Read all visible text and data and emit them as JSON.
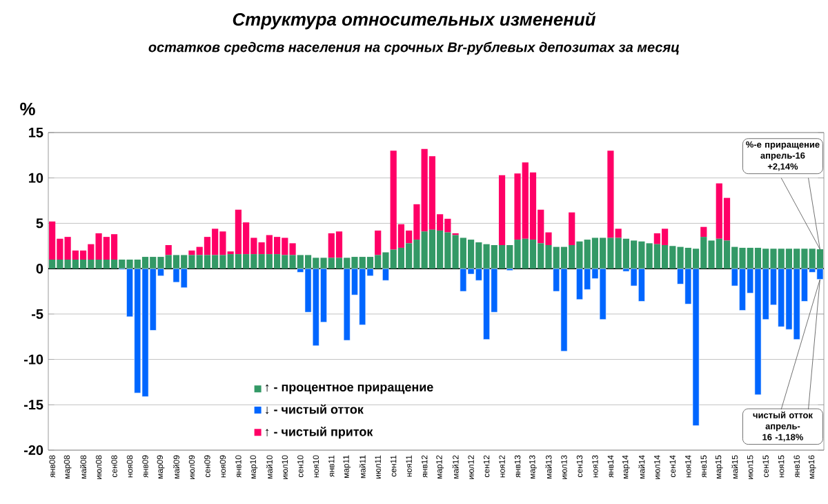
{
  "chart_data": {
    "type": "bar",
    "stacked": true,
    "title": "Структура относительных изменений",
    "subtitle": "остатков средств населения на срочных Br-рублевых депозитах за месяц",
    "ylabel": "%",
    "categories": [
      "янв08",
      null,
      "мар08",
      null,
      "май08",
      null,
      "июл08",
      null,
      "сен08",
      null,
      "ноя08",
      null,
      "янв09",
      null,
      "мар09",
      null,
      "май09",
      null,
      "июл09",
      null,
      "сен09",
      null,
      "ноя09",
      null,
      "янв10",
      null,
      "мар10",
      null,
      "май10",
      null,
      "июл10",
      null,
      "сен10",
      null,
      "ноя10",
      null,
      "янв11",
      null,
      "мар11",
      null,
      "май11",
      null,
      "июл11",
      null,
      "сен11",
      null,
      "ноя11",
      null,
      "янв12",
      null,
      "мар12",
      null,
      "май12",
      null,
      "июл12",
      null,
      "сен12",
      null,
      "ноя12",
      null,
      "янв13",
      null,
      "мар13",
      null,
      "май13",
      null,
      "июл13",
      null,
      "сен13",
      null,
      "ноя13",
      null,
      "янв14",
      null,
      "мар14",
      null,
      "май14",
      null,
      "июл14",
      null,
      "сен14",
      null,
      "ноя14",
      null,
      "янв15",
      null,
      "мар15",
      null,
      "май15",
      null,
      "июл15",
      null,
      "сен15",
      null,
      "ноя15",
      null,
      "янв16",
      null,
      "мар16",
      null
    ],
    "series": [
      {
        "name": "↑ - процентное приращение",
        "color": "#339966",
        "values": [
          1.0,
          1.0,
          1.0,
          1.0,
          1.0,
          1.0,
          1.0,
          1.0,
          1.0,
          1.0,
          1.0,
          1.0,
          1.3,
          1.3,
          1.3,
          1.5,
          1.5,
          1.5,
          1.5,
          1.5,
          1.5,
          1.5,
          1.5,
          1.6,
          1.6,
          1.6,
          1.6,
          1.6,
          1.6,
          1.6,
          1.5,
          1.5,
          1.5,
          1.5,
          1.2,
          1.2,
          1.2,
          1.2,
          1.2,
          1.3,
          1.3,
          1.3,
          1.5,
          1.8,
          2.1,
          2.3,
          2.8,
          3.2,
          4.1,
          4.3,
          4.2,
          4.0,
          3.7,
          3.4,
          3.2,
          2.9,
          2.7,
          2.6,
          2.6,
          2.6,
          3.2,
          3.3,
          3.2,
          2.8,
          2.6,
          2.4,
          2.4,
          2.6,
          3.0,
          3.2,
          3.4,
          3.4,
          3.4,
          3.4,
          3.3,
          3.1,
          3.0,
          2.8,
          2.7,
          2.6,
          2.5,
          2.4,
          2.3,
          2.2,
          3.5,
          3.1,
          3.3,
          3.1,
          2.4,
          2.3,
          2.3,
          2.3,
          2.2,
          2.2,
          2.2,
          2.2,
          2.2,
          2.2,
          2.2,
          2.14
        ]
      },
      {
        "name": "↓ - чистый  отток",
        "color": "#0066ff",
        "values": [
          null,
          null,
          null,
          null,
          null,
          null,
          null,
          null,
          null,
          -0.1,
          -5.3,
          -13.7,
          -14.1,
          -6.8,
          -0.8,
          null,
          -1.5,
          -2.1,
          null,
          null,
          null,
          null,
          null,
          null,
          null,
          null,
          null,
          null,
          null,
          null,
          null,
          null,
          -0.4,
          -4.8,
          -8.5,
          -5.9,
          null,
          null,
          -7.9,
          -2.9,
          -6.2,
          -0.8,
          null,
          -1.3,
          null,
          null,
          null,
          null,
          null,
          null,
          null,
          null,
          null,
          -2.5,
          -0.6,
          -1.3,
          -7.8,
          -4.8,
          null,
          -0.2,
          null,
          null,
          null,
          null,
          null,
          -2.5,
          -9.1,
          null,
          -3.4,
          -2.3,
          -1.1,
          -5.6,
          null,
          null,
          -0.3,
          -1.9,
          -3.6,
          null,
          null,
          null,
          null,
          -1.7,
          -3.9,
          -17.3,
          null,
          null,
          null,
          null,
          -1.9,
          -4.6,
          -2.7,
          -13.9,
          -5.6,
          -4.0,
          -6.4,
          -6.7,
          -7.8,
          -3.6,
          -0.4,
          -1.18
        ]
      },
      {
        "name": "↑ - чистый  приток",
        "color": "#ff0066",
        "values": [
          4.2,
          2.3,
          2.5,
          1.0,
          1.0,
          1.7,
          2.9,
          2.5,
          2.8,
          null,
          null,
          null,
          null,
          null,
          null,
          1.1,
          null,
          null,
          0.5,
          0.9,
          2.0,
          2.9,
          2.6,
          0.3,
          4.9,
          3.5,
          1.8,
          1.3,
          2.1,
          1.9,
          1.9,
          1.3,
          null,
          null,
          null,
          null,
          2.7,
          2.9,
          null,
          null,
          null,
          null,
          2.7,
          null,
          10.9,
          2.6,
          1.4,
          3.9,
          9.1,
          8.1,
          1.8,
          1.5,
          0.2,
          null,
          null,
          null,
          null,
          null,
          7.7,
          null,
          7.3,
          8.4,
          7.4,
          3.7,
          1.4,
          null,
          null,
          3.6,
          null,
          null,
          null,
          null,
          9.6,
          1.0,
          null,
          null,
          null,
          null,
          1.2,
          1.8,
          null,
          null,
          null,
          null,
          1.1,
          null,
          6.1,
          4.7,
          null,
          null,
          null,
          null,
          null,
          null,
          null,
          null,
          null,
          null,
          null,
          null
        ]
      }
    ],
    "ylim": [
      -20,
      15
    ],
    "yticks": [
      -20,
      -15,
      -10,
      -5,
      0,
      5,
      10,
      15
    ],
    "grid": "y",
    "legend": "bottom",
    "annotations": [
      "%-е приращение апрель-16 +2,14%",
      "чистый отток апрель-16 -1,18%"
    ]
  }
}
